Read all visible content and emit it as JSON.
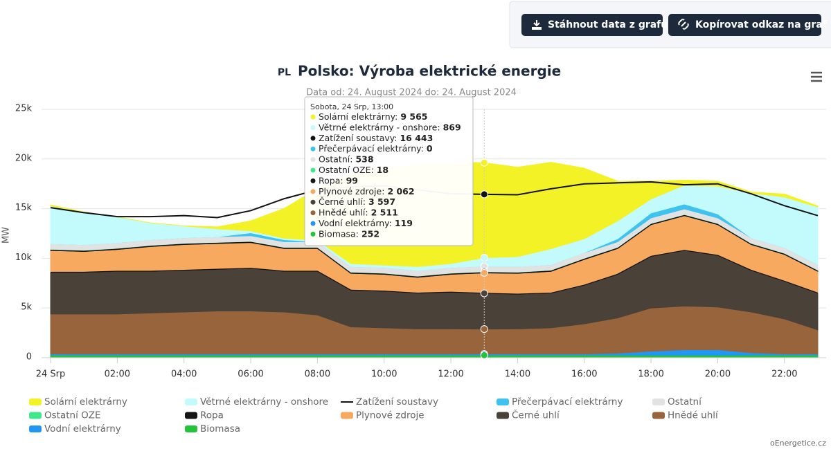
{
  "buttons": [
    "Stáhnout data z grafu",
    "Kopírovat odkaz na graf"
  ],
  "credit": "oEnergetice.cz",
  "chart_data": {
    "type": "area",
    "stacked": true,
    "title_prefix": "PL",
    "title": "Polsko: Výroba elektrické energie",
    "subtitle": "Data od: 24. August 2024 do: 24. August 2024",
    "y_label": "MW",
    "grid": true,
    "legend": "bottom",
    "categories": [
      "24 Srp",
      null,
      "02:00",
      null,
      "04:00",
      null,
      "06:00",
      null,
      "08:00",
      null,
      "10:00",
      null,
      "12:00",
      null,
      "14:00",
      null,
      "16:00",
      null,
      "18:00",
      null,
      "20:00",
      null,
      "22:00",
      null
    ],
    "ylim": [
      0,
      25000
    ],
    "yticks": [
      0,
      {
        "value": 5000,
        "label": "5k"
      },
      {
        "value": 10000,
        "label": "10k"
      },
      {
        "value": 15000,
        "label": "15k"
      },
      {
        "value": 20000,
        "label": "20k"
      },
      {
        "value": 25000,
        "label": "25k"
      }
    ],
    "series": [
      {
        "name": "Solární elektrárny",
        "color": "#f2f226",
        "values": [
          100,
          0,
          0,
          0,
          0,
          200,
          1000,
          3000,
          5200,
          9000,
          9700,
          10300,
          10200,
          9565,
          9000,
          8700,
          7100,
          4000,
          1800,
          500,
          500,
          100,
          300,
          100
        ]
      },
      {
        "name": "Větrné elektrárny - onshore",
        "color": "#c3fbfd",
        "values": [
          3800,
          3300,
          2600,
          1700,
          1200,
          800,
          200,
          150,
          150,
          300,
          250,
          400,
          400,
          869,
          1000,
          1600,
          1400,
          1800,
          1400,
          1900,
          2800,
          4500,
          5100,
          5800
        ]
      },
      {
        "name": "Zatížení soustavy",
        "color": "#111111",
        "type": "line",
        "values": [
          15100,
          14600,
          14200,
          14200,
          14300,
          14100,
          14800,
          16000,
          16900,
          17200,
          17300,
          16900,
          16500,
          16443,
          16400,
          17000,
          17500,
          17600,
          17700,
          17400,
          17500,
          16500,
          15300,
          14300
        ]
      },
      {
        "name": "Přečerpávací elektrárny",
        "color": "#3ec2ef",
        "values": [
          0,
          0,
          0,
          0,
          0,
          0,
          300,
          200,
          0,
          0,
          0,
          0,
          0,
          0,
          0,
          0,
          0,
          300,
          500,
          500,
          400,
          0,
          0,
          0
        ]
      },
      {
        "name": "Ostatní",
        "color": "#e2e2e2",
        "values": [
          550,
          550,
          550,
          550,
          550,
          550,
          550,
          550,
          550,
          550,
          550,
          550,
          550,
          538,
          550,
          550,
          550,
          550,
          550,
          550,
          550,
          550,
          550,
          550
        ]
      },
      {
        "name": "Ostatní OZE",
        "color": "#3fe88c",
        "values": [
          20,
          20,
          20,
          20,
          20,
          20,
          20,
          20,
          20,
          20,
          20,
          20,
          20,
          18,
          20,
          20,
          20,
          20,
          20,
          20,
          20,
          20,
          20,
          20
        ]
      },
      {
        "name": "Ropa",
        "color": "#151515",
        "values": [
          100,
          100,
          100,
          100,
          100,
          100,
          100,
          100,
          100,
          100,
          100,
          100,
          100,
          99,
          100,
          100,
          100,
          100,
          100,
          100,
          100,
          100,
          100,
          100
        ]
      },
      {
        "name": "Plynové zdroje",
        "color": "#f7a95f",
        "values": [
          2200,
          2100,
          2200,
          2500,
          2600,
          2600,
          2600,
          2300,
          2300,
          1700,
          1700,
          1600,
          1800,
          2062,
          2100,
          2200,
          2600,
          2600,
          3200,
          3500,
          3100,
          2600,
          2700,
          2200
        ]
      },
      {
        "name": "Černé uhlí",
        "color": "#4a4139",
        "values": [
          4200,
          4200,
          4300,
          4200,
          4200,
          4200,
          4300,
          4100,
          4400,
          3700,
          3700,
          3600,
          3700,
          3597,
          3500,
          3500,
          3900,
          4400,
          5200,
          5600,
          5200,
          4200,
          3800,
          3700
        ]
      },
      {
        "name": "Hnědé uhlí",
        "color": "#98643c",
        "values": [
          4030,
          4030,
          4030,
          4130,
          4230,
          4330,
          4330,
          4230,
          3930,
          2730,
          2630,
          2530,
          2530,
          2511,
          2530,
          2630,
          3030,
          3550,
          4350,
          4400,
          4300,
          4100,
          3530,
          2430
        ]
      },
      {
        "name": "Vodní elektrárny",
        "color": "#2196f3",
        "values": [
          120,
          120,
          120,
          120,
          120,
          120,
          120,
          120,
          120,
          120,
          120,
          120,
          120,
          119,
          120,
          120,
          120,
          200,
          400,
          550,
          550,
          250,
          120,
          120
        ]
      },
      {
        "name": "Biomasa",
        "color": "#25c23c",
        "values": [
          250,
          250,
          250,
          250,
          250,
          250,
          250,
          250,
          250,
          250,
          250,
          250,
          250,
          252,
          250,
          250,
          250,
          250,
          250,
          250,
          250,
          250,
          250,
          250
        ]
      }
    ],
    "tooltip": {
      "title": "Sobota, 24 Srp, 13:00",
      "index": 13,
      "separator": ":",
      "value_labels": [
        "9 565",
        "869",
        "16 443",
        "0",
        "538",
        "18",
        "99",
        "2 062",
        "3 597",
        "2 511",
        "119",
        "252"
      ]
    }
  }
}
